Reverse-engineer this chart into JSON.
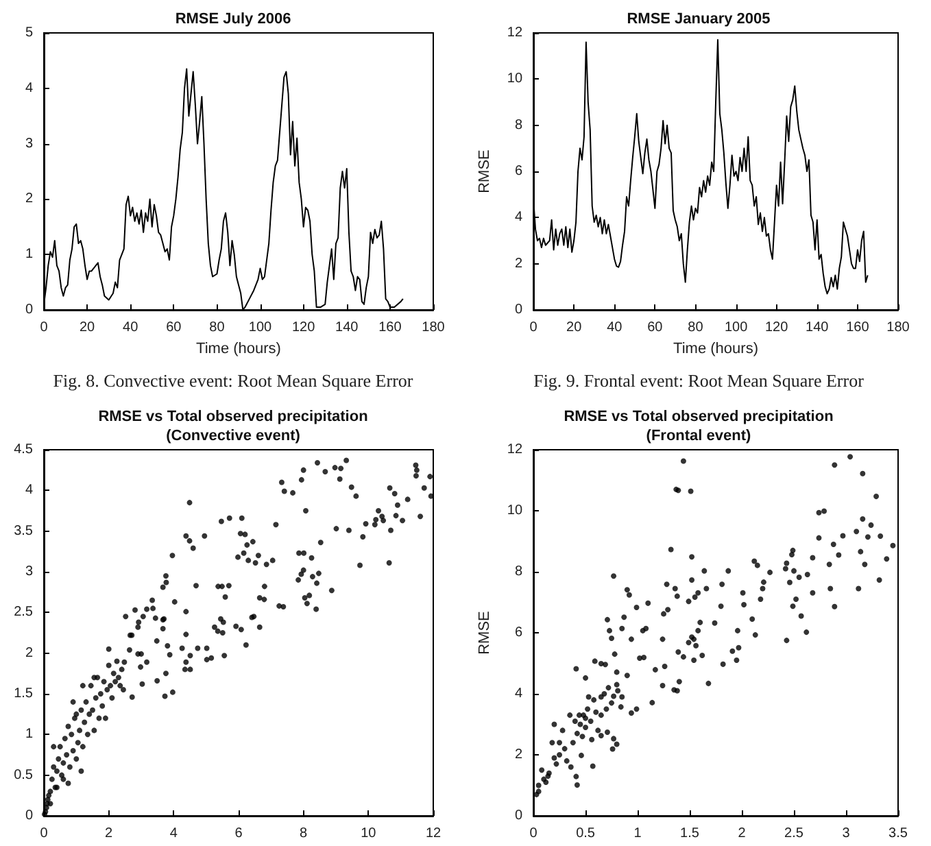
{
  "chart_data": [
    {
      "type": "line",
      "title": "RMSE July 2006",
      "xlabel": "Time (hours)",
      "annotations": [
        "Fig. 8. Convective event: Root Mean Square Error"
      ],
      "xlim": [
        0,
        180
      ],
      "xticks": [
        0,
        20,
        40,
        60,
        80,
        100,
        120,
        140,
        160,
        180
      ],
      "ylim": [
        0,
        5
      ],
      "yticks": [
        0,
        1,
        2,
        3,
        4,
        5
      ],
      "series": [
        {
          "color": "#000000",
          "x": [
            0,
            1,
            2,
            3,
            4,
            5,
            6,
            7,
            8,
            9,
            10,
            11,
            12,
            13,
            14,
            15,
            16,
            17,
            18,
            19,
            20,
            21,
            22,
            24,
            25,
            26,
            27,
            28,
            30,
            32,
            33,
            34,
            35,
            37,
            38,
            39,
            40,
            41,
            42,
            43,
            44,
            45,
            46,
            47,
            48,
            49,
            50,
            51,
            52,
            53,
            54,
            55,
            56,
            57,
            58,
            59,
            60,
            61,
            62,
            63,
            64,
            65,
            66,
            67,
            68,
            69,
            70,
            71,
            72,
            73,
            74,
            75,
            76,
            77,
            78,
            80,
            81,
            82,
            83,
            84,
            85,
            86,
            87,
            88,
            89,
            90,
            91,
            92,
            93,
            95,
            97,
            99,
            100,
            101,
            102,
            104,
            105,
            106,
            107,
            108,
            109,
            110,
            111,
            112,
            113,
            114,
            115,
            116,
            117,
            118,
            119,
            120,
            121,
            122,
            123,
            124,
            125,
            126,
            128,
            130,
            131,
            132,
            133,
            134,
            135,
            136,
            137,
            138,
            139,
            140,
            141,
            142,
            143,
            144,
            145,
            146,
            147,
            148,
            149,
            150,
            151,
            152,
            153,
            154,
            155,
            156,
            157,
            158,
            159,
            160,
            162,
            165,
            166
          ],
          "values": [
            0.1,
            0.4,
            0.8,
            1.05,
            0.95,
            1.25,
            0.8,
            0.7,
            0.4,
            0.25,
            0.4,
            0.45,
            0.9,
            1.1,
            1.5,
            1.55,
            1.2,
            1.25,
            1.1,
            0.8,
            0.55,
            0.7,
            0.7,
            0.8,
            0.85,
            0.6,
            0.45,
            0.25,
            0.18,
            0.3,
            0.5,
            0.4,
            0.9,
            1.1,
            1.9,
            2.05,
            1.7,
            1.85,
            1.6,
            1.75,
            1.55,
            1.8,
            1.4,
            1.75,
            1.6,
            2.0,
            1.5,
            1.9,
            1.7,
            1.4,
            1.35,
            1.2,
            1.05,
            1.1,
            0.9,
            1.5,
            1.7,
            2.0,
            2.4,
            2.9,
            3.2,
            4.0,
            4.35,
            3.5,
            3.9,
            4.3,
            3.7,
            3.0,
            3.4,
            3.85,
            3.0,
            2.0,
            1.2,
            0.8,
            0.6,
            0.65,
            0.9,
            1.1,
            1.6,
            1.75,
            1.4,
            0.8,
            1.25,
            1.0,
            0.6,
            0.45,
            0.3,
            0.0,
            0.05,
            0.2,
            0.35,
            0.55,
            0.75,
            0.55,
            0.6,
            1.2,
            1.8,
            2.3,
            2.6,
            2.7,
            3.2,
            3.7,
            4.2,
            4.3,
            3.9,
            2.8,
            3.4,
            2.6,
            3.1,
            2.3,
            2.0,
            1.5,
            1.85,
            1.8,
            1.6,
            1.0,
            0.7,
            0.05,
            0.05,
            0.1,
            0.5,
            0.8,
            1.1,
            0.55,
            1.2,
            1.3,
            2.2,
            2.5,
            2.2,
            2.55,
            1.4,
            0.7,
            0.6,
            0.35,
            0.6,
            0.55,
            0.15,
            0.1,
            0.4,
            0.6,
            1.4,
            1.2,
            1.45,
            1.3,
            1.35,
            1.6,
            1.1,
            0.2,
            0.15,
            0.05,
            0.05,
            0.15,
            0.2
          ]
        }
      ]
    },
    {
      "type": "line",
      "title": "RMSE January 2005",
      "xlabel": "Time (hours)",
      "ylabel": "RMSE",
      "annotations": [
        "Fig. 9. Frontal event: Root Mean Square Error"
      ],
      "xlim": [
        0,
        180
      ],
      "xticks": [
        0,
        20,
        40,
        60,
        80,
        100,
        120,
        140,
        160,
        180
      ],
      "ylim": [
        0,
        12
      ],
      "yticks": [
        0,
        2,
        4,
        6,
        8,
        10,
        12
      ],
      "series": [
        {
          "color": "#000000",
          "x": [
            0,
            1,
            2,
            3,
            4,
            5,
            6,
            8,
            9,
            10,
            11,
            12,
            13,
            14,
            15,
            16,
            17,
            18,
            19,
            20,
            21,
            22,
            23,
            24,
            25,
            26,
            27,
            28,
            29,
            30,
            31,
            32,
            33,
            34,
            35,
            36,
            37,
            38,
            39,
            40,
            41,
            42,
            43,
            44,
            45,
            46,
            47,
            48,
            49,
            50,
            51,
            52,
            53,
            54,
            55,
            56,
            57,
            58,
            59,
            60,
            61,
            62,
            63,
            64,
            65,
            66,
            67,
            68,
            69,
            70,
            71,
            72,
            73,
            74,
            75,
            76,
            77,
            78,
            79,
            80,
            81,
            82,
            83,
            84,
            85,
            86,
            87,
            88,
            89,
            90,
            91,
            92,
            93,
            94,
            95,
            96,
            97,
            98,
            99,
            100,
            101,
            102,
            103,
            104,
            105,
            106,
            107,
            108,
            109,
            110,
            111,
            112,
            113,
            114,
            115,
            116,
            117,
            118,
            119,
            120,
            121,
            122,
            123,
            124,
            125,
            126,
            127,
            128,
            129,
            130,
            131,
            132,
            133,
            134,
            135,
            136,
            137,
            138,
            139,
            140,
            141,
            142,
            143,
            144,
            145,
            146,
            147,
            148,
            149,
            150,
            151,
            152,
            153,
            154,
            155,
            156,
            157,
            158,
            159,
            160,
            161,
            162,
            163,
            164,
            165
          ],
          "values": [
            4.8,
            3.5,
            3.0,
            3.1,
            2.7,
            3.1,
            2.8,
            3.0,
            3.9,
            2.6,
            3.5,
            2.8,
            3.3,
            3.5,
            2.8,
            3.6,
            2.7,
            3.5,
            2.5,
            3.0,
            3.8,
            6.0,
            7.0,
            6.5,
            7.5,
            11.6,
            9.0,
            7.8,
            4.5,
            3.8,
            4.1,
            3.6,
            4.0,
            3.3,
            3.9,
            3.3,
            3.7,
            3.2,
            2.7,
            2.2,
            1.9,
            1.85,
            2.1,
            2.8,
            3.4,
            4.9,
            4.5,
            5.6,
            6.6,
            7.5,
            8.5,
            7.3,
            6.6,
            5.9,
            6.8,
            7.4,
            6.5,
            6.0,
            5.2,
            4.4,
            6.0,
            6.3,
            7.0,
            8.2,
            7.2,
            8.0,
            7.0,
            6.8,
            4.3,
            3.9,
            3.6,
            3.0,
            3.3,
            2.0,
            1.2,
            2.6,
            3.8,
            4.5,
            3.9,
            4.4,
            4.2,
            5.3,
            4.9,
            5.6,
            5.1,
            5.8,
            5.4,
            6.4,
            6.0,
            9.0,
            11.7,
            8.5,
            7.8,
            6.8,
            5.5,
            4.4,
            5.4,
            6.7,
            5.8,
            6.0,
            5.6,
            6.6,
            6.0,
            7.0,
            6.0,
            7.5,
            5.6,
            5.4,
            4.5,
            4.9,
            3.7,
            4.2,
            3.4,
            4.0,
            3.2,
            3.3,
            2.6,
            2.2,
            3.8,
            5.4,
            4.5,
            6.4,
            4.6,
            6.4,
            8.4,
            7.3,
            8.8,
            9.1,
            9.7,
            8.6,
            7.8,
            7.4,
            7.0,
            6.7,
            6.0,
            6.5,
            4.1,
            3.8,
            2.6,
            3.9,
            2.2,
            2.4,
            1.6,
            1.0,
            0.7,
            0.9,
            1.4,
            1.0,
            1.5,
            0.9,
            1.8,
            2.3,
            3.8,
            3.5,
            3.2,
            2.6,
            2.0,
            1.8,
            1.8,
            2.6,
            2.1,
            3.0,
            3.4,
            1.2,
            1.5
          ]
        }
      ]
    },
    {
      "type": "scatter",
      "title": "RMSE vs Total observed precipitation\n(Convective event)",
      "marker": "circle",
      "xlim": [
        0,
        12
      ],
      "xticks": [
        0,
        2,
        4,
        6,
        8,
        10,
        12
      ],
      "ylim": [
        0,
        4.5
      ],
      "yticks": [
        0,
        0.5,
        1,
        1.5,
        2,
        2.5,
        3,
        3.5,
        4,
        4.5
      ],
      "series": [
        {
          "color": "#000000",
          "x": [
            7.33,
            7.41,
            7.67,
            8.0,
            7.94,
            8.43,
            8.67,
            8.97,
            9.15,
            9.32,
            9.12,
            9.48,
            9.62,
            11.46,
            11.49,
            11.47,
            11.9,
            11.93,
            11.72,
            11.6,
            11.21,
            11.05,
            10.9,
            10.85,
            10.81,
            10.66,
            10.69,
            10.46,
            10.42,
            10.31,
            10.23,
            10.2,
            9.92,
            9.83,
            9.74,
            10.64,
            9.4,
            9.01,
            8.87,
            8.53,
            8.47,
            8.41,
            8.39,
            8.28,
            8.25,
            8.18,
            8.11,
            8.04,
            8.01,
            7.86,
            8.0,
            8.07,
            7.84,
            7.93,
            7.15,
            7.25,
            7.38,
            7.05,
            6.86,
            6.8,
            6.79,
            6.61,
            6.65,
            6.65,
            6.47,
            6.41,
            6.44,
            6.26,
            6.2,
            6.06,
            6.16,
            5.98,
            6.3,
            6.52,
            6.08,
            5.92,
            6.23,
            6.1,
            5.72,
            5.47,
            5.37,
            5.49,
            5.7,
            5.59,
            5.45,
            5.53,
            5.51,
            5.36,
            5.26,
            5.56,
            5.16,
            5.02,
            5.02,
            4.74,
            4.95,
            4.6,
            4.49,
            4.38,
            4.49,
            4.69,
            4.51,
            4.51,
            4.35,
            4.38,
            4.38,
            4.38,
            4.03,
            4.26,
            3.96,
            3.97,
            3.73,
            3.76,
            3.77,
            3.67,
            3.7,
            3.67,
            3.81,
            3.88,
            3.67,
            3.76,
            3.48,
            3.44,
            3.49,
            3.34,
            3.36,
            3.17,
            3.06,
            2.9,
            2.81,
            2.92,
            3.0,
            2.9,
            3.17,
            2.98,
            3.03,
            2.71,
            2.66,
            2.52,
            2.72,
            2.48,
            2.64,
            0.02,
            0.05,
            0.08,
            0.1,
            0.12,
            0.15,
            0.2,
            0.25,
            0.3,
            0.35,
            0.4,
            0.45,
            0.5,
            0.55,
            0.6,
            0.65,
            0.7,
            0.75,
            0.8,
            0.85,
            0.9,
            0.95,
            1.0,
            1.05,
            1.1,
            1.15,
            1.2,
            1.25,
            1.3,
            1.35,
            1.4,
            1.45,
            1.5,
            1.55,
            1.6,
            1.65,
            1.7,
            1.75,
            1.8,
            1.85,
            1.9,
            1.95,
            2.0,
            2.05,
            2.1,
            2.15,
            2.2,
            2.25,
            2.3,
            2.35,
            2.4,
            2.45,
            0.6,
            0.4,
            0.2,
            0.9,
            1.0,
            0.75,
            1.2,
            0.3,
            2.0,
            1.55,
            1.15
          ],
          "values": [
            4.1,
            3.99,
            3.97,
            4.25,
            4.13,
            4.34,
            4.23,
            4.28,
            4.27,
            4.37,
            4.14,
            4.04,
            3.93,
            4.31,
            4.25,
            4.18,
            4.17,
            3.93,
            4.03,
            3.68,
            3.89,
            3.63,
            3.82,
            3.69,
            3.96,
            4.03,
            3.51,
            3.63,
            3.68,
            3.75,
            3.64,
            3.58,
            3.59,
            3.43,
            3.08,
            3.11,
            3.51,
            3.53,
            2.77,
            3.36,
            2.98,
            2.86,
            2.54,
            2.94,
            3.17,
            2.71,
            2.61,
            2.68,
            3.23,
            3.23,
            3.02,
            3.75,
            2.9,
            2.97,
            3.58,
            2.58,
            2.57,
            3.14,
            3.09,
            2.82,
            2.66,
            3.2,
            2.68,
            2.32,
            2.45,
            2.44,
            3.37,
            3.33,
            3.46,
            3.47,
            3.23,
            3.18,
            3.14,
            3.11,
            2.29,
            2.33,
            2.1,
            3.66,
            3.66,
            3.62,
            2.82,
            2.82,
            2.83,
            2.69,
            2.42,
            2.38,
            2.25,
            2.27,
            2.32,
            1.97,
            1.94,
            1.92,
            2.06,
            2.06,
            3.44,
            3.29,
            3.38,
            3.44,
            3.85,
            2.83,
            1.97,
            1.8,
            1.8,
            1.89,
            2.23,
            2.51,
            2.63,
            2.06,
            3.2,
            1.52,
            1.47,
            2.95,
            2.87,
            2.81,
            2.42,
            2.3,
            2.09,
            1.98,
            2.41,
            1.75,
            2.15,
            2.43,
            1.66,
            2.65,
            2.55,
            2.54,
            2.45,
            2.32,
            2.53,
            2.38,
            1.99,
            1.99,
            1.89,
            1.83,
            1.62,
            2.22,
            2.22,
            2.45,
            1.46,
            1.89,
            2.04,
            0.02,
            0.05,
            0.1,
            0.15,
            0.2,
            0.25,
            0.3,
            0.45,
            0.6,
            0.35,
            0.55,
            0.7,
            0.85,
            0.5,
            0.65,
            0.95,
            0.75,
            1.1,
            0.6,
            1.0,
            0.8,
            1.2,
            0.7,
            0.9,
            1.05,
            1.3,
            0.85,
            1.15,
            1.4,
            1.0,
            1.25,
            1.6,
            1.3,
            1.05,
            1.45,
            1.7,
            1.2,
            1.5,
            1.35,
            1.65,
            1.2,
            1.55,
            1.85,
            1.6,
            1.45,
            1.75,
            1.65,
            1.9,
            1.7,
            1.6,
            1.8,
            1.55,
            0.45,
            0.35,
            0.15,
            1.4,
            1.25,
            0.4,
            1.6,
            0.85,
            2.05,
            1.7,
            0.55
          ]
        }
      ]
    },
    {
      "type": "scatter",
      "title": "RMSE vs Total observed precipitation\n(Frontal event)",
      "ylabel": "RMSE",
      "marker": "circle",
      "xlim": [
        0,
        3.5
      ],
      "xticks": [
        0,
        0.5,
        1,
        1.5,
        2,
        2.5,
        3,
        3.5
      ],
      "ylim": [
        0,
        12
      ],
      "yticks": [
        0,
        2,
        4,
        6,
        8,
        10,
        12
      ],
      "series": [
        {
          "color": "#000000",
          "x": [
            1.44,
            1.37,
            1.39,
            1.51,
            1.52,
            1.32,
            3.04,
            2.89,
            3.16,
            3.29,
            2.79,
            3.16,
            3.24,
            3.21,
            3.33,
            3.1,
            2.97,
            2.88,
            2.93,
            2.84,
            3.14,
            3.18,
            3.39,
            3.45,
            3.32,
            3.12,
            2.85,
            2.89,
            2.74,
            2.74,
            2.68,
            2.63,
            2.68,
            2.62,
            2.55,
            2.49,
            2.48,
            2.5,
            2.46,
            2.43,
            2.42,
            2.52,
            2.49,
            2.57,
            2.43,
            2.27,
            2.21,
            2.2,
            2.18,
            2.12,
            2.15,
            2.13,
            2.1,
            2.01,
            2.02,
            1.96,
            1.97,
            1.95,
            1.91,
            1.87,
            1.81,
            1.82,
            1.68,
            1.8,
            1.74,
            1.64,
            1.66,
            1.58,
            1.55,
            1.52,
            1.49,
            1.54,
            1.52,
            1.49,
            1.56,
            1.58,
            1.62,
            1.54,
            1.6,
            1.44,
            1.39,
            1.36,
            1.38,
            1.28,
            1.29,
            1.25,
            1.24,
            1.38,
            1.35,
            1.4,
            1.26,
            1.24,
            1.17,
            1.14,
            1.1,
            1.08,
            1.05,
            1.06,
            1.02,
            0.99,
            0.94,
            0.92,
            0.9,
            0.87,
            0.85,
            0.8,
            0.77,
            0.75,
            0.73,
            0.71,
            0.69,
            0.78,
            0.81,
            0.77,
            0.84,
            0.99,
            0.94,
            0.65,
            0.59,
            0.5,
            0.41,
            0.44,
            0.46,
            0.42,
            0.41,
            0.65,
            0.8,
            0.77,
            0.71,
            0.65,
            0.76,
            0.57,
            0.45,
            0.48,
            0.5,
            0.52,
            0.55,
            0.58,
            0.6,
            0.62,
            0.5,
            0.47,
            0.53,
            0.42,
            0.4,
            0.38,
            0.35,
            0.56,
            0.65,
            0.7,
            0.72,
            0.68,
            0.75,
            0.8,
            0.85,
            0.9,
            0.3,
            0.25,
            0.2,
            0.15,
            0.1,
            0.05,
            0.03,
            0.08,
            0.12,
            0.18,
            0.22,
            0.28,
            0.32,
            0.36,
            0.05,
            0.14,
            0.25,
            0.2
          ],
          "values": [
            11.63,
            10.7,
            10.67,
            10.64,
            8.49,
            8.73,
            11.77,
            11.5,
            11.22,
            10.47,
            9.99,
            9.73,
            9.53,
            9.14,
            9.17,
            9.32,
            9.18,
            8.9,
            8.55,
            8.24,
            8.66,
            8.24,
            8.42,
            8.86,
            7.73,
            7.45,
            7.45,
            6.86,
            9.94,
            9.11,
            8.46,
            7.91,
            7.31,
            6.02,
            7.82,
            8.7,
            8.56,
            8.03,
            7.65,
            8.28,
            8.1,
            7.1,
            6.87,
            6.55,
            5.75,
            7.98,
            7.66,
            7.45,
            7.1,
            8.35,
            8.21,
            5.93,
            6.45,
            7.31,
            6.92,
            6.07,
            5.51,
            5.1,
            5.4,
            8.03,
            7.59,
            4.97,
            4.34,
            6.87,
            6.32,
            8.03,
            7.45,
            7.31,
            7.17,
            7.73,
            7.03,
            5.79,
            5.86,
            5.68,
            5.58,
            6.07,
            5.26,
            5.1,
            6.34,
            5.21,
            5.37,
            7.45,
            7.2,
            7.59,
            6.76,
            6.62,
            5.79,
            4.1,
            4.13,
            4.4,
            4.9,
            4.27,
            4.79,
            3.71,
            6.97,
            6.14,
            6.07,
            5.19,
            5.17,
            6.83,
            5.79,
            7.24,
            7.41,
            6.51,
            6.14,
            4.71,
            7.86,
            5.82,
            6.07,
            6.43,
            4.96,
            5.3,
            4.1,
            3.92,
            3.57,
            3.5,
            3.37,
            4.99,
            5.07,
            4.52,
            4.82,
            3.3,
            1.98,
            1.01,
            1.29,
            3.3,
            2.35,
            2.53,
            2.74,
            2.63,
            2.19,
            1.63,
            3.0,
            3.3,
            2.9,
            3.5,
            3.1,
            3.8,
            3.4,
            2.8,
            3.2,
            2.6,
            3.9,
            2.7,
            3.1,
            2.4,
            3.3,
            2.5,
            3.9,
            3.5,
            4.2,
            4.0,
            3.7,
            4.3,
            3.9,
            4.6,
            2.2,
            2.0,
            1.9,
            1.4,
            1.2,
            0.8,
            0.7,
            1.5,
            1.1,
            2.4,
            1.7,
            2.8,
            1.8,
            1.6,
            1.0,
            1.3,
            2.4,
            3.0
          ]
        }
      ]
    }
  ]
}
